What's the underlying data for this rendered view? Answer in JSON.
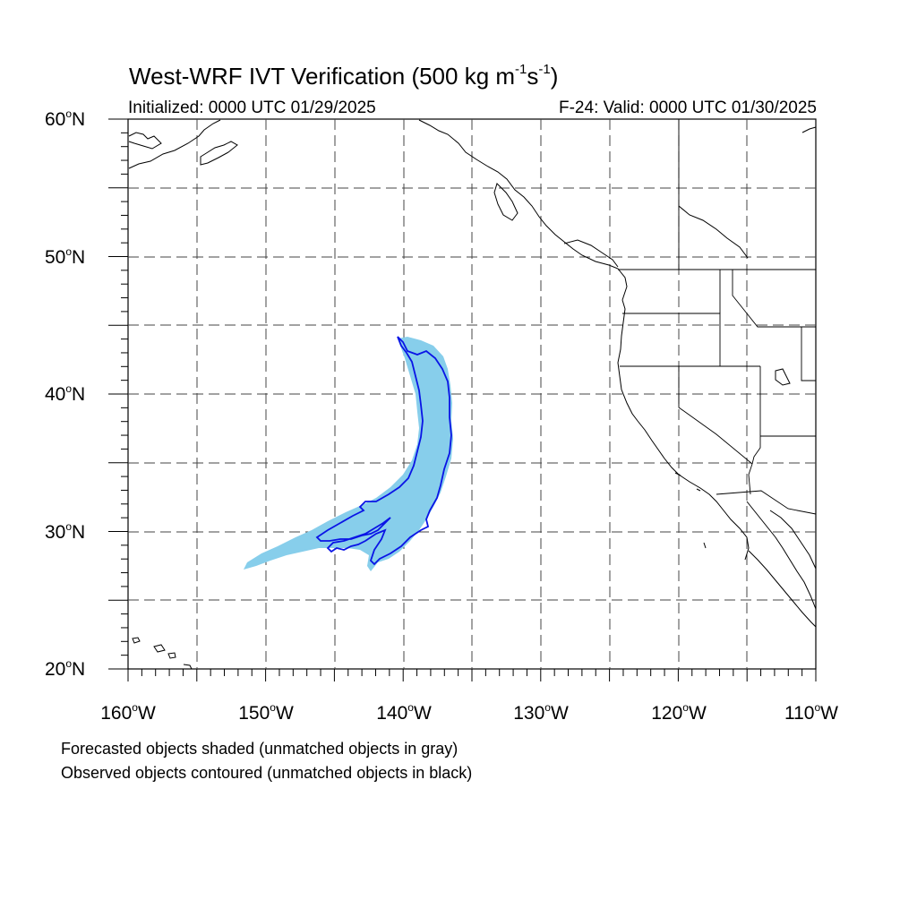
{
  "title": {
    "main": "West-WRF IVT Verification (500 kg m",
    "exp1": "-1",
    "mid": "s",
    "exp2": "-1",
    "end": ")"
  },
  "initialized": "Initialized: 0000 UTC 01/29/2025",
  "valid": "F-24: Valid: 0000 UTC 01/30/2025",
  "map": {
    "lon_range": [
      -160,
      -110
    ],
    "lat_range": [
      20,
      60
    ],
    "grid": "dashed",
    "grid_spacing_deg": 5,
    "lat_labels": [
      {
        "num": "60",
        "unit": "N"
      },
      {
        "num": "50",
        "unit": "N"
      },
      {
        "num": "40",
        "unit": "N"
      },
      {
        "num": "30",
        "unit": "N"
      },
      {
        "num": "20",
        "unit": "N"
      }
    ],
    "lon_labels": [
      {
        "num": "160",
        "unit": "W"
      },
      {
        "num": "150",
        "unit": "W"
      },
      {
        "num": "140",
        "unit": "W"
      },
      {
        "num": "130",
        "unit": "W"
      },
      {
        "num": "120",
        "unit": "W"
      },
      {
        "num": "110",
        "unit": "W"
      }
    ]
  },
  "objects": {
    "forecast_fill_color": "#87ceeb",
    "observed_contour_color": "#0a14e6"
  },
  "notes": [
    "Forecasted objects shaded (unmatched objects in gray)",
    "Observed objects contoured (unmatched objects in black)"
  ]
}
